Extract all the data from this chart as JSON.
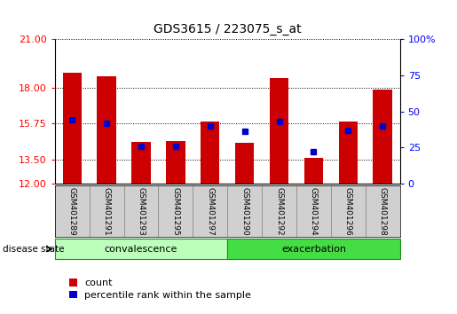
{
  "title": "GDS3615 / 223075_s_at",
  "samples": [
    "GSM401289",
    "GSM401291",
    "GSM401293",
    "GSM401295",
    "GSM401297",
    "GSM401290",
    "GSM401292",
    "GSM401294",
    "GSM401296",
    "GSM401298"
  ],
  "count_values": [
    18.9,
    18.7,
    14.6,
    14.65,
    15.85,
    14.55,
    18.6,
    13.62,
    15.85,
    17.85
  ],
  "percentile_values": [
    44,
    42,
    26,
    26,
    40,
    36,
    43,
    22,
    37,
    40
  ],
  "ymin": 12,
  "ymax": 21,
  "yticks_left": [
    12,
    13.5,
    15.75,
    18,
    21
  ],
  "yticks_right_vals": [
    0,
    25,
    50,
    75,
    100
  ],
  "bar_color": "#cc0000",
  "percentile_color": "#0000cc",
  "bar_width": 0.55,
  "convalescence_count": 5,
  "exacerbation_count": 5,
  "group_label_text": "disease state",
  "legend_count_label": "count",
  "legend_pct_label": "percentile rank within the sample",
  "label_bg_color": "#d0d0d0",
  "conv_color": "#bbffbb",
  "exac_color": "#44dd44",
  "title_fontsize": 10,
  "tick_fontsize": 8,
  "sample_fontsize": 6.5,
  "group_fontsize": 8,
  "legend_fontsize": 8
}
